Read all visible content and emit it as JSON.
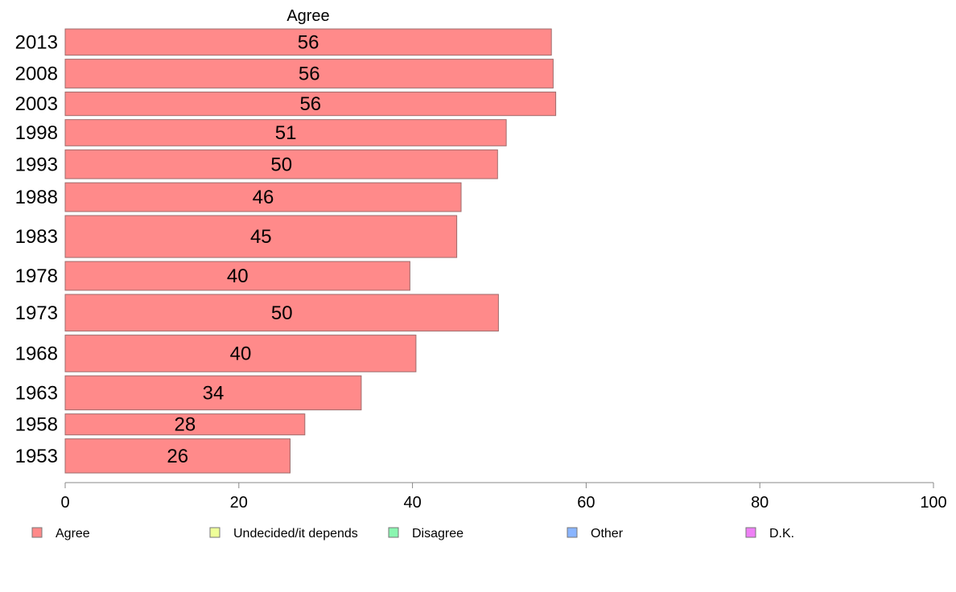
{
  "chart_data": {
    "type": "bar",
    "orientation": "horizontal",
    "series_title": "Agree",
    "categories": [
      "2013",
      "2008",
      "2003",
      "1998",
      "1993",
      "1988",
      "1983",
      "1978",
      "1973",
      "1968",
      "1963",
      "1958",
      "1953"
    ],
    "values": [
      56,
      56,
      56,
      51,
      50,
      46,
      45,
      40,
      50,
      40,
      34,
      28,
      26
    ],
    "bar_values_precise": [
      56,
      56.2,
      56.5,
      50.8,
      49.8,
      45.6,
      45.1,
      39.7,
      49.9,
      40.4,
      34.1,
      27.6,
      25.9
    ],
    "bar_weights": [
      1.0,
      1.1,
      0.9,
      1.0,
      1.1,
      1.1,
      1.6,
      1.1,
      1.4,
      1.4,
      1.3,
      0.8,
      1.3
    ],
    "xlim": [
      0,
      100
    ],
    "xticks": [
      0,
      20,
      40,
      60,
      80,
      100
    ],
    "bar_color": "#FF8A8A",
    "bar_stroke": "#9E6B6B",
    "legend": {
      "placement": "bottom",
      "items": [
        {
          "label": "Agree",
          "color": "#FF8A8A"
        },
        {
          "label": "Undecided/it depends",
          "color": "#EEFF99"
        },
        {
          "label": "Disagree",
          "color": "#8AF5B0"
        },
        {
          "label": "Other",
          "color": "#8AB5FF"
        },
        {
          "label": "D.K.",
          "color": "#EE80F5"
        }
      ]
    },
    "grid": false
  }
}
